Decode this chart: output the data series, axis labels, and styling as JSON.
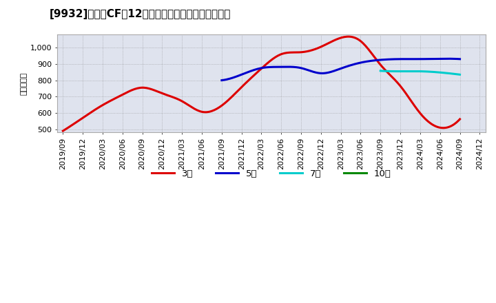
{
  "title": "[9932]　営業CFだ12か月移動合計の標準偏差の推移",
  "ylabel": "（百万円）",
  "background_color": "#ffffff",
  "plot_bg_color": "#dfe3ee",
  "grid_color": "#ffffff",
  "ylim": [
    480,
    1080
  ],
  "yticks": [
    500,
    600,
    700,
    800,
    900,
    1000
  ],
  "series": {
    "3年": {
      "color": "#dd0000",
      "x": [
        0,
        1,
        2,
        3,
        4,
        5,
        6,
        7,
        8,
        9,
        10,
        11,
        12,
        13,
        14,
        15,
        16,
        17,
        18,
        19,
        20
      ],
      "y": [
        490,
        570,
        648,
        712,
        755,
        720,
        672,
        607,
        645,
        758,
        872,
        960,
        972,
        1005,
        1060,
        1040,
        895,
        765,
        598,
        510,
        562
      ]
    },
    "5年": {
      "color": "#0000cc",
      "x": [
        8,
        9,
        10,
        11,
        12,
        13,
        14,
        15,
        16,
        17,
        18,
        19,
        20
      ],
      "y": [
        800,
        835,
        875,
        882,
        875,
        843,
        872,
        908,
        925,
        930,
        930,
        932,
        930
      ]
    },
    "7年": {
      "color": "#00cccc",
      "x": [
        16,
        17,
        18,
        19,
        20
      ],
      "y": [
        858,
        855,
        855,
        848,
        835
      ]
    },
    "10年": {
      "color": "#008800",
      "x": [],
      "y": []
    }
  },
  "legend_labels": [
    "3年",
    "5年",
    "7年",
    "10年"
  ],
  "legend_colors": [
    "#dd0000",
    "#0000cc",
    "#00cccc",
    "#008800"
  ],
  "xtick_labels": [
    "2019/09",
    "2019/12",
    "2020/03",
    "2020/06",
    "2020/09",
    "2020/12",
    "2021/03",
    "2021/06",
    "2021/09",
    "2021/12",
    "2022/03",
    "2022/06",
    "2022/09",
    "2022/12",
    "2023/03",
    "2023/06",
    "2023/09",
    "2023/12",
    "2024/03",
    "2024/06",
    "2024/09",
    "2024/12"
  ],
  "title_fontsize": 11,
  "axis_fontsize": 8,
  "ylabel_fontsize": 8
}
